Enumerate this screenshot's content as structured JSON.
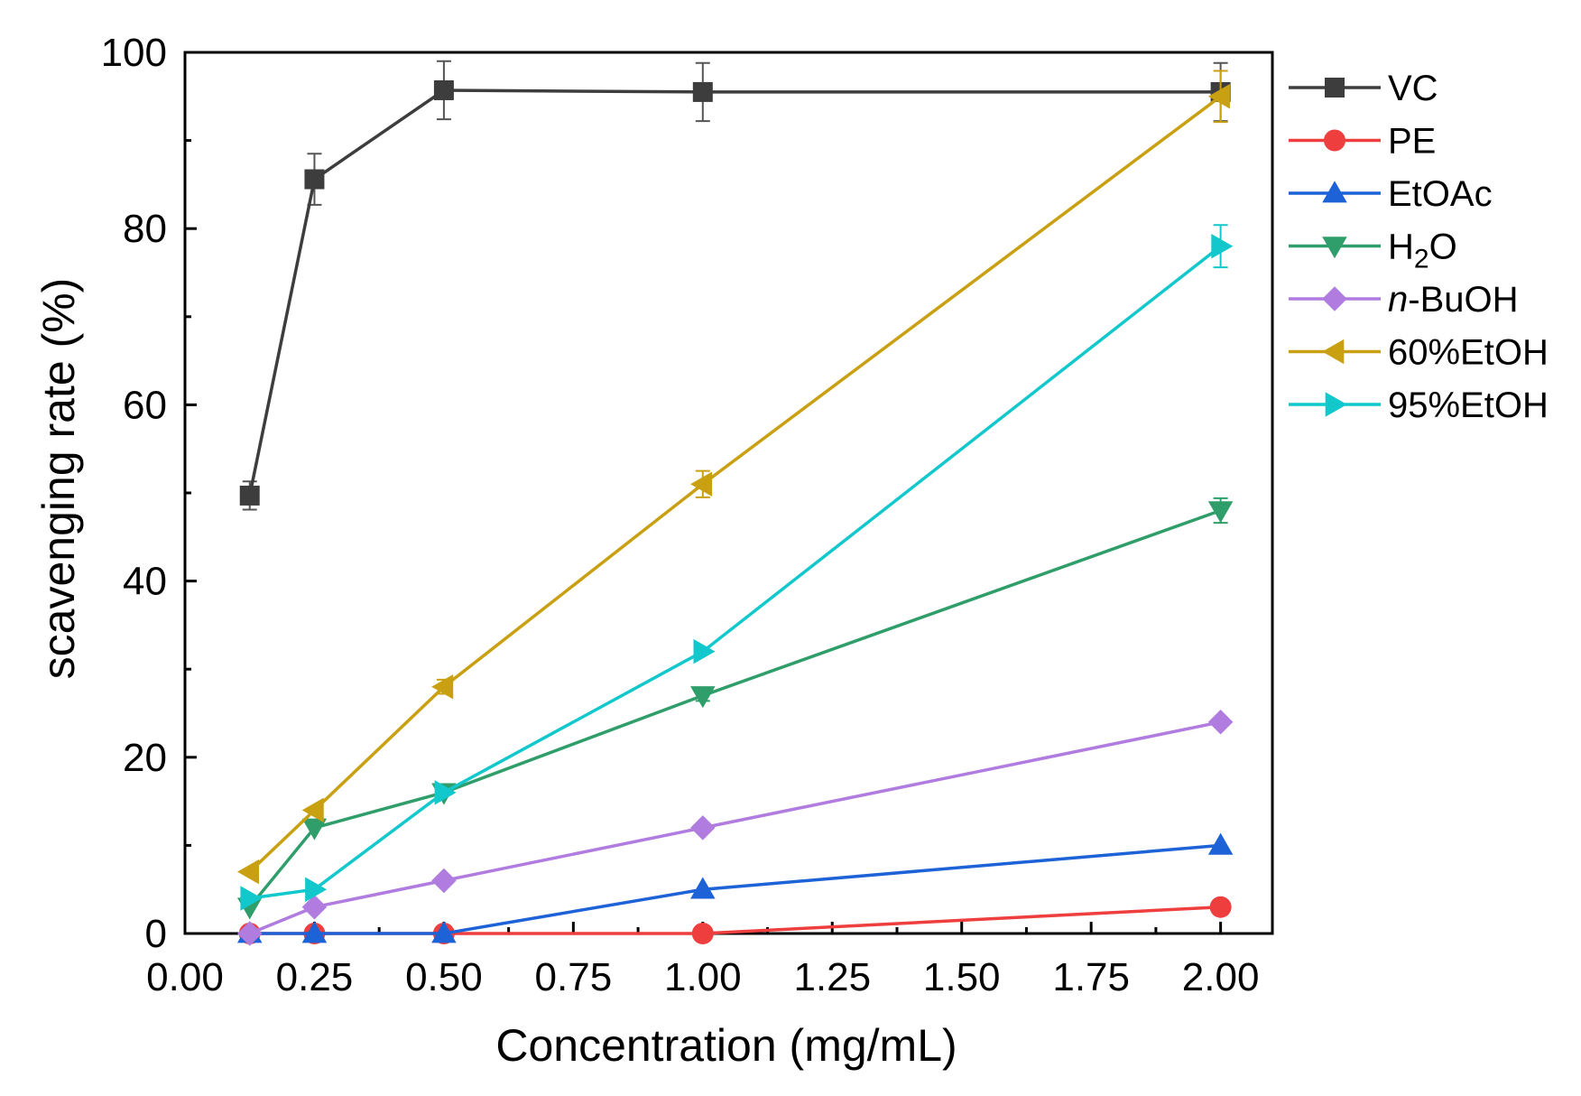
{
  "chart_data": {
    "type": "line",
    "xlabel": "Concentration (mg/mL)",
    "ylabel": "scavenging rate (%)",
    "xlim": [
      0,
      2.1
    ],
    "ylim": [
      0,
      100
    ],
    "x_ticks": [
      "0.00",
      "0.25",
      "0.50",
      "0.75",
      "1.00",
      "1.25",
      "1.50",
      "1.75",
      "2.00"
    ],
    "y_ticks": [
      "0",
      "20",
      "40",
      "60",
      "80",
      "100"
    ],
    "x": [
      0.125,
      0.25,
      0.5,
      1.0,
      2.0
    ],
    "legend_position": "outside-right",
    "grid": false,
    "series": [
      {
        "name": "VC",
        "color": "#3d3d3d",
        "marker": "square",
        "values": [
          49.7,
          85.6,
          95.7,
          95.5,
          95.5
        ],
        "errors": [
          1.6,
          2.9,
          3.3,
          3.3,
          3.3
        ]
      },
      {
        "name": "PE",
        "color": "#ee3e3e",
        "marker": "circle",
        "values": [
          0,
          0,
          0,
          0,
          3
        ],
        "errors": [
          0,
          0,
          0,
          0,
          0
        ]
      },
      {
        "name": "EtOAc",
        "color": "#1d62d6",
        "marker": "triangle-up",
        "values": [
          0,
          0,
          0,
          5,
          10
        ],
        "errors": [
          0,
          0,
          0,
          0,
          0
        ]
      },
      {
        "name": "H₂O",
        "name_main": "H",
        "name_sub": "2",
        "name_tail": "O",
        "color": "#2f9e6a",
        "marker": "triangle-down",
        "values": [
          3,
          12,
          16,
          27,
          48
        ],
        "errors": [
          0,
          0,
          0,
          0.6,
          1.4
        ]
      },
      {
        "name": "n-BuOH",
        "name_prefix": "n",
        "name_rest": "-BuOH",
        "color": "#b07ce0",
        "marker": "diamond",
        "values": [
          0,
          3,
          6,
          12,
          24
        ],
        "errors": [
          0,
          0,
          0,
          0,
          0
        ]
      },
      {
        "name": "60%EtOH",
        "color": "#c9a012",
        "marker": "triangle-left",
        "values": [
          7,
          14,
          28,
          51,
          95
        ],
        "errors": [
          0,
          0,
          0.8,
          1.5,
          2.9
        ]
      },
      {
        "name": "95%EtOH",
        "color": "#12c8cc",
        "marker": "triangle-right",
        "values": [
          4,
          5,
          16,
          32,
          78
        ],
        "errors": [
          0,
          0,
          0,
          0,
          2.4
        ]
      }
    ]
  }
}
